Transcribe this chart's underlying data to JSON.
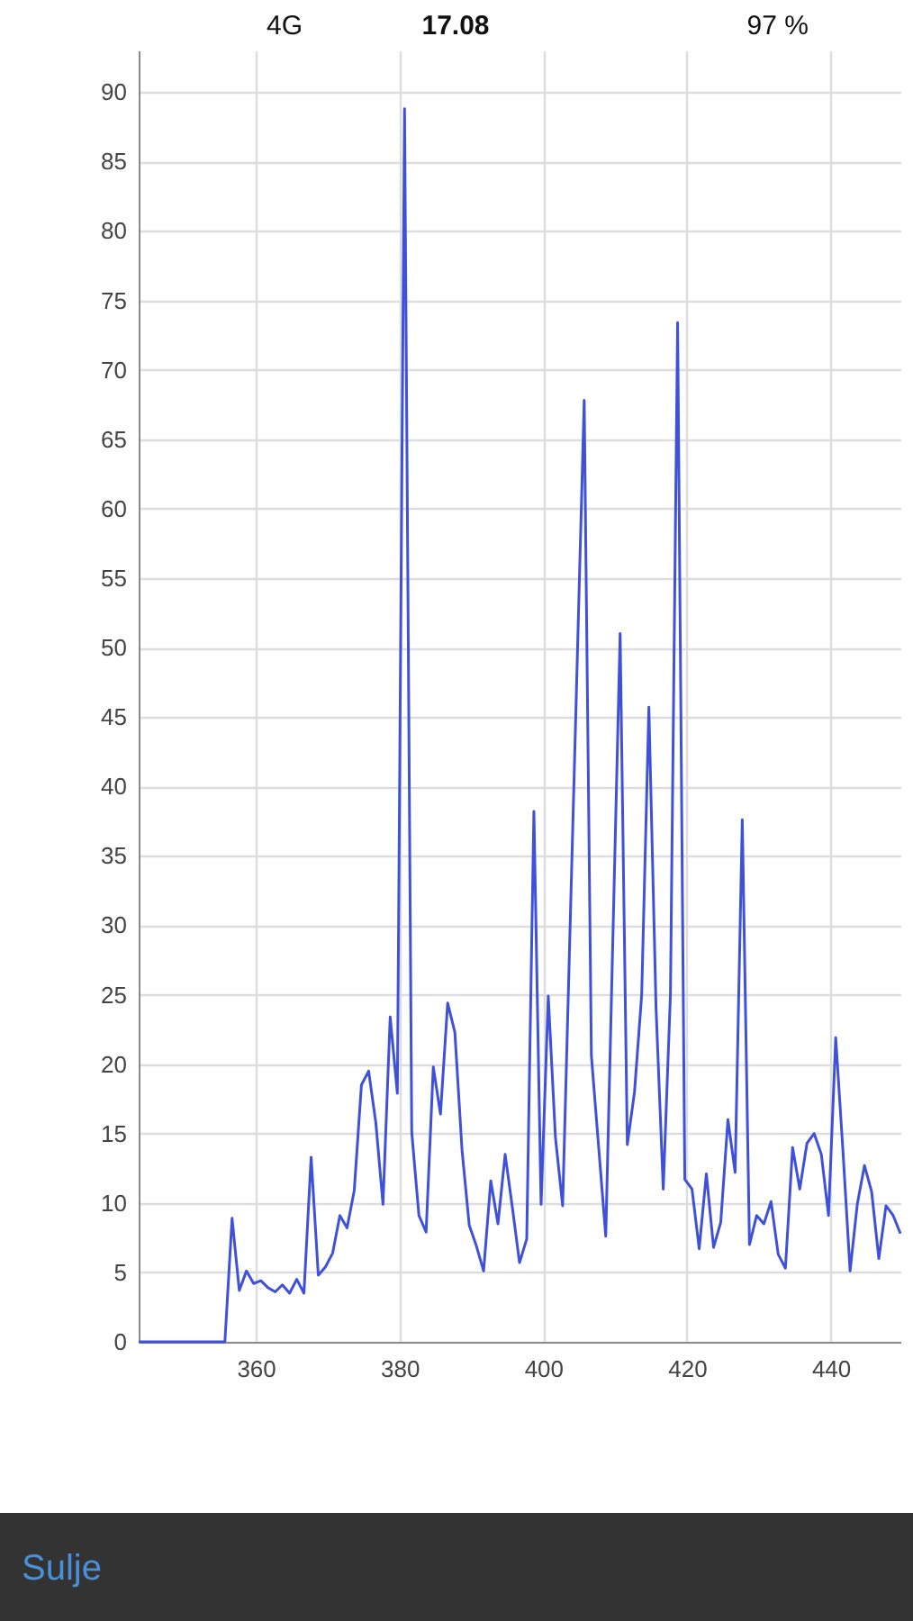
{
  "chart_data": {
    "type": "line",
    "x": [
      343.7,
      355.7,
      356.7,
      357.7,
      358.7,
      359.7,
      360.7,
      361.7,
      362.7,
      363.7,
      364.7,
      365.7,
      366.7,
      367.7,
      368.7,
      369.7,
      370.7,
      371.7,
      372.7,
      373.7,
      374.7,
      375.7,
      376.7,
      377.7,
      378.7,
      379.7,
      380.7,
      381.7,
      382.7,
      383.7,
      384.7,
      385.7,
      386.7,
      387.7,
      388.7,
      389.7,
      390.7,
      391.7,
      392.7,
      393.7,
      394.7,
      395.7,
      396.7,
      397.7,
      398.7,
      399.7,
      400.7,
      401.7,
      402.7,
      405.7,
      406.7,
      408.7,
      410.7,
      411.7,
      412.7,
      413.7,
      414.7,
      415.7,
      416.7,
      417.7,
      418.7,
      419.7,
      420.7,
      421.7,
      422.7,
      423.7,
      424.7,
      425.7,
      426.7,
      427.7,
      428.7,
      429.7,
      430.7,
      431.7,
      432.7,
      433.7,
      434.7,
      435.7,
      436.7,
      437.7,
      438.7,
      439.7,
      440.7,
      441.7,
      442.7,
      443.7,
      444.7,
      445.7,
      446.7,
      447.7,
      448.7,
      449.7
    ],
    "series": [
      {
        "color": "#3f51d9",
        "values": [
          0,
          0,
          8.9,
          3.7,
          5.1,
          4.2,
          4.4,
          3.9,
          3.6,
          4.1,
          3.5,
          4.5,
          3.5,
          13.3,
          4.8,
          5.4,
          6.4,
          9.1,
          8.2,
          10.9,
          18.5,
          19.5,
          15.8,
          9.9,
          23.4,
          17.9,
          88.8,
          15.1,
          9.1,
          7.9,
          19.8,
          16.4,
          24.4,
          22.3,
          13.8,
          8.4,
          6.9,
          5.1,
          11.6,
          8.5,
          13.5,
          9.7,
          5.7,
          7.4,
          38.2,
          9.9,
          24.9,
          14.7,
          9.8,
          67.8,
          20.6,
          7.6,
          51,
          14.2,
          18,
          25,
          45.7,
          24,
          11,
          25,
          73.4,
          11.7,
          11,
          6.7,
          12.1,
          6.8,
          8.6,
          16,
          12.2,
          37.6,
          7,
          9.1,
          8.5,
          10.1,
          6.3,
          5.3,
          14,
          11,
          14.3,
          15,
          13.5,
          9.1,
          21.9,
          13.8,
          5.1,
          9.9,
          12.7,
          10.8,
          6,
          9.8,
          9.1,
          7.8
        ]
      }
    ],
    "xlim": [
      343.7,
      449.7
    ],
    "ylim": [
      0,
      93
    ],
    "xticks": [
      360,
      380,
      400,
      420,
      440
    ],
    "yticks": [
      0,
      5,
      10,
      15,
      20,
      25,
      30,
      35,
      40,
      45,
      50,
      55,
      60,
      65,
      70,
      75,
      80,
      85,
      90
    ],
    "grid": true,
    "annotations": [
      "4G",
      "17.08",
      "97 %",
      "Sulje"
    ]
  }
}
